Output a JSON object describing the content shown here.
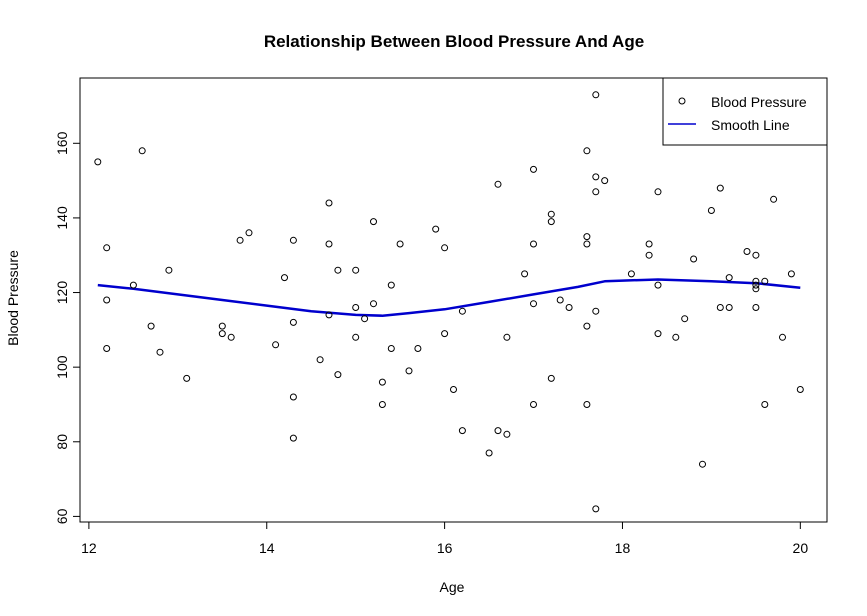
{
  "chart_data": {
    "type": "scatter",
    "title": "Relationship Between Blood Pressure And Age",
    "xlabel": "Age",
    "ylabel": "Blood Pressure",
    "xlim": [
      11.9,
      20.3
    ],
    "ylim": [
      58.5,
      177.5
    ],
    "xticks": [
      12,
      14,
      16,
      18,
      20
    ],
    "yticks": [
      60,
      80,
      100,
      120,
      140,
      160
    ],
    "legend": {
      "position": "top-right",
      "entries": [
        "Blood Pressure",
        "Smooth Line"
      ]
    },
    "colors": {
      "points": "#000000",
      "smooth": "#0000cd"
    },
    "series": [
      {
        "name": "Blood Pressure",
        "kind": "points",
        "points": [
          [
            12.1,
            155
          ],
          [
            12.2,
            132
          ],
          [
            12.2,
            118
          ],
          [
            12.2,
            105
          ],
          [
            12.5,
            122
          ],
          [
            12.6,
            158
          ],
          [
            12.7,
            111
          ],
          [
            12.8,
            104
          ],
          [
            12.9,
            126
          ],
          [
            13.1,
            97
          ],
          [
            13.5,
            111
          ],
          [
            13.5,
            109
          ],
          [
            13.6,
            108
          ],
          [
            13.7,
            134
          ],
          [
            13.8,
            136
          ],
          [
            14.1,
            106
          ],
          [
            14.2,
            124
          ],
          [
            14.3,
            134
          ],
          [
            14.3,
            112
          ],
          [
            14.3,
            92
          ],
          [
            14.3,
            81
          ],
          [
            14.6,
            102
          ],
          [
            14.7,
            144
          ],
          [
            14.7,
            133
          ],
          [
            14.7,
            114
          ],
          [
            14.8,
            126
          ],
          [
            14.8,
            98
          ],
          [
            15.0,
            126
          ],
          [
            15.0,
            116
          ],
          [
            15.0,
            108
          ],
          [
            15.1,
            113
          ],
          [
            15.2,
            139
          ],
          [
            15.2,
            117
          ],
          [
            15.3,
            96
          ],
          [
            15.3,
            90
          ],
          [
            15.4,
            122
          ],
          [
            15.4,
            105
          ],
          [
            15.5,
            133
          ],
          [
            15.6,
            99
          ],
          [
            15.7,
            105
          ],
          [
            15.9,
            137
          ],
          [
            16.0,
            132
          ],
          [
            16.0,
            109
          ],
          [
            16.1,
            94
          ],
          [
            16.2,
            115
          ],
          [
            16.2,
            83
          ],
          [
            16.5,
            77
          ],
          [
            16.6,
            149
          ],
          [
            16.6,
            83
          ],
          [
            16.7,
            108
          ],
          [
            16.7,
            82
          ],
          [
            16.9,
            125
          ],
          [
            17.0,
            153
          ],
          [
            17.0,
            133
          ],
          [
            17.0,
            117
          ],
          [
            17.0,
            90
          ],
          [
            17.2,
            141
          ],
          [
            17.2,
            139
          ],
          [
            17.2,
            97
          ],
          [
            17.3,
            118
          ],
          [
            17.4,
            116
          ],
          [
            17.6,
            158
          ],
          [
            17.6,
            135
          ],
          [
            17.6,
            133
          ],
          [
            17.6,
            111
          ],
          [
            17.6,
            90
          ],
          [
            17.7,
            173
          ],
          [
            17.7,
            151
          ],
          [
            17.7,
            147
          ],
          [
            17.7,
            115
          ],
          [
            17.7,
            62
          ],
          [
            17.8,
            150
          ],
          [
            18.1,
            125
          ],
          [
            18.3,
            133
          ],
          [
            18.3,
            130
          ],
          [
            18.4,
            147
          ],
          [
            18.4,
            122
          ],
          [
            18.4,
            109
          ],
          [
            18.6,
            108
          ],
          [
            18.7,
            113
          ],
          [
            18.8,
            129
          ],
          [
            18.9,
            74
          ],
          [
            19.0,
            142
          ],
          [
            19.1,
            148
          ],
          [
            19.1,
            116
          ],
          [
            19.2,
            124
          ],
          [
            19.2,
            116
          ],
          [
            19.4,
            131
          ],
          [
            19.5,
            130
          ],
          [
            19.5,
            123
          ],
          [
            19.5,
            122
          ],
          [
            19.5,
            121
          ],
          [
            19.5,
            116
          ],
          [
            19.6,
            123
          ],
          [
            19.6,
            90
          ],
          [
            19.7,
            145
          ],
          [
            19.8,
            108
          ],
          [
            19.9,
            125
          ],
          [
            20.0,
            94
          ]
        ]
      },
      {
        "name": "Smooth Line",
        "kind": "line",
        "points": [
          [
            12.1,
            122
          ],
          [
            12.5,
            121
          ],
          [
            13.0,
            119.5
          ],
          [
            13.5,
            118
          ],
          [
            14.0,
            116.5
          ],
          [
            14.5,
            115
          ],
          [
            15.0,
            114
          ],
          [
            15.3,
            113.8
          ],
          [
            15.6,
            114.5
          ],
          [
            16.0,
            115.5
          ],
          [
            16.5,
            117.5
          ],
          [
            17.0,
            119.5
          ],
          [
            17.5,
            121.5
          ],
          [
            17.8,
            123
          ],
          [
            18.0,
            123.2
          ],
          [
            18.4,
            123.5
          ],
          [
            19.0,
            123
          ],
          [
            19.5,
            122.5
          ],
          [
            20.0,
            121.3
          ]
        ]
      }
    ]
  }
}
